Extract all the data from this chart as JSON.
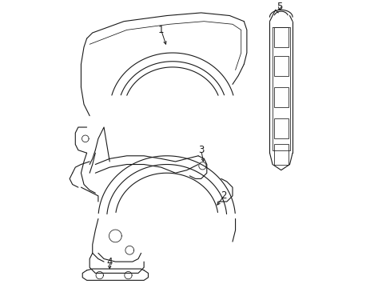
{
  "bg_color": "#ffffff",
  "line_color": "#1a1a1a",
  "line_width": 0.8,
  "label_fontsize": 8.5,
  "fig_w": 4.89,
  "fig_h": 3.6,
  "dpi": 100
}
